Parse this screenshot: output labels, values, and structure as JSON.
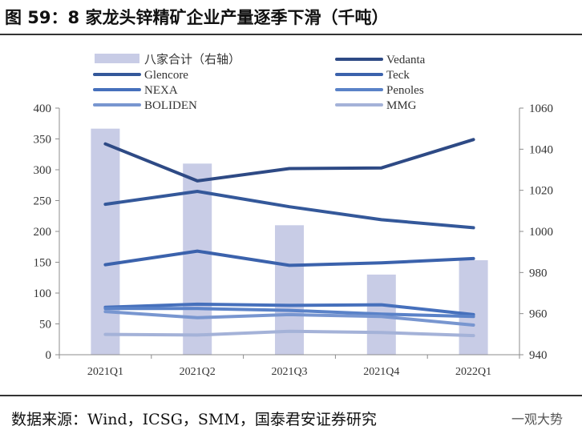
{
  "title": "图 59：8 家龙头锌精矿企业产量逐季下滑（千吨）",
  "source": "数据来源：Wind，ICSG，SMM，国泰君安证券研究",
  "watermark": "一观大势",
  "chart_data": {
    "type": "bar+line",
    "categories": [
      "2021Q1",
      "2021Q2",
      "2021Q3",
      "2021Q4",
      "2022Q1"
    ],
    "bar_series": {
      "name": "八家合计（右轴）",
      "axis": "right",
      "color": "#c8cce6",
      "values": [
        1050,
        1033,
        1003,
        979,
        986
      ]
    },
    "line_series": [
      {
        "name": "Vedanta",
        "color": "#2e4a85",
        "values": [
          342,
          282,
          302,
          303,
          349
        ]
      },
      {
        "name": "Glencore",
        "color": "#34589a",
        "values": [
          244,
          265,
          240,
          219,
          206
        ]
      },
      {
        "name": "Teck",
        "color": "#3b62ac",
        "values": [
          146,
          168,
          145,
          149,
          156
        ]
      },
      {
        "name": "NEXA",
        "color": "#4670bc",
        "values": [
          77,
          82,
          80,
          81,
          65
        ]
      },
      {
        "name": "Penoles",
        "color": "#5a82c8",
        "values": [
          75,
          75,
          72,
          66,
          62
        ]
      },
      {
        "name": "BOLIDEN",
        "color": "#7896d0",
        "values": [
          70,
          60,
          65,
          62,
          48
        ]
      },
      {
        "name": "MMG",
        "color": "#a4b2d8",
        "values": [
          33,
          32,
          38,
          36,
          31
        ]
      }
    ],
    "left_axis": {
      "min": 0,
      "max": 400,
      "step": 50
    },
    "right_axis": {
      "min": 940,
      "max": 1060,
      "step": 20
    },
    "legend_placement": "top",
    "grid": false
  }
}
